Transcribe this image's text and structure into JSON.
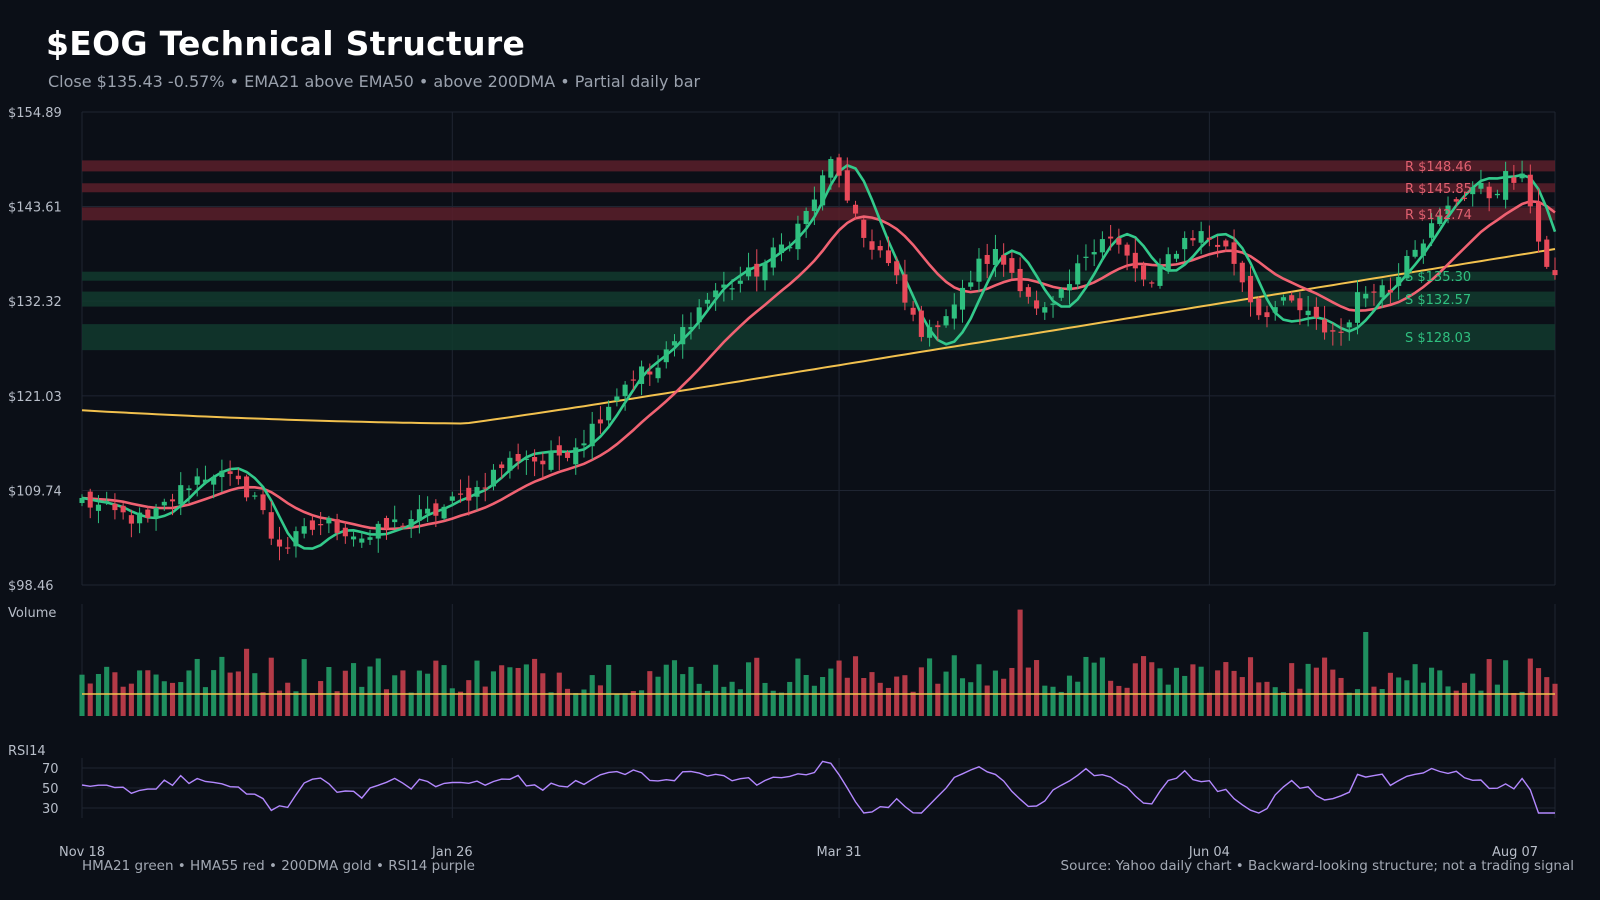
{
  "header": {
    "title": "$EOG Technical Structure",
    "subtitle": "Close $135.43  -0.57%  •  EMA21 above EMA50 • above 200DMA  •  Partial daily bar"
  },
  "footer": {
    "legend_text": "HMA21 green • HMA55 red • 200DMA gold  •  RSI14 purple",
    "source_text": "Source: Yahoo daily chart • Backward-looking structure; not a trading signal"
  },
  "colors": {
    "background": "#0b0f17",
    "up": "#2fbf7f",
    "down": "#e84a5a",
    "hma21": "#33c98b",
    "hma55": "#f06272",
    "dma200": "#f2c14e",
    "rsi": "#b388ff",
    "resistance": "#e06070",
    "support": "#2fbf7f",
    "grid": "#1f2532"
  },
  "chart_data": {
    "type": "candlestick",
    "title": "$EOG Technical Structure",
    "y_ticks": [
      "$154.89",
      "$143.61",
      "$132.32",
      "$121.03",
      "$109.74",
      "$98.46"
    ],
    "ylim": [
      98.46,
      154.89
    ],
    "x_ticks": [
      "Nov 18",
      "Jan 26",
      "Mar 31",
      "Jun 04",
      "Aug 07"
    ],
    "bars": 180,
    "grid": true,
    "levels": [
      {
        "kind": "resistance",
        "label": "R $148.46",
        "value": 148.46
      },
      {
        "kind": "resistance",
        "label": "R $145.85",
        "value": 145.85
      },
      {
        "kind": "resistance",
        "label": "R $142.74",
        "value": 142.74
      },
      {
        "kind": "support",
        "label": "S $135.30",
        "value": 135.3
      },
      {
        "kind": "support",
        "label": "S $132.57",
        "value": 132.57
      },
      {
        "kind": "support",
        "label": "S $128.03",
        "value": 128.03
      }
    ],
    "close_anchors": [
      [
        0,
        108.5
      ],
      [
        6,
        107.0
      ],
      [
        12,
        106.0
      ],
      [
        16,
        108.5
      ],
      [
        20,
        111.0
      ],
      [
        24,
        112.0
      ],
      [
        28,
        110.5
      ],
      [
        32,
        109.0
      ],
      [
        34,
        104.5
      ],
      [
        37,
        103.0
      ],
      [
        40,
        104.5
      ],
      [
        44,
        106.0
      ],
      [
        48,
        105.0
      ],
      [
        52,
        104.0
      ],
      [
        56,
        105.5
      ],
      [
        60,
        106.5
      ],
      [
        64,
        107.0
      ],
      [
        68,
        108.5
      ],
      [
        72,
        110.0
      ],
      [
        76,
        112.5
      ],
      [
        80,
        114.0
      ],
      [
        84,
        113.0
      ],
      [
        88,
        114.5
      ],
      [
        92,
        116.5
      ],
      [
        95,
        119.5
      ],
      [
        98,
        122.0
      ],
      [
        101,
        124.0
      ],
      [
        104,
        123.5
      ],
      [
        108,
        127.5
      ],
      [
        111,
        130.5
      ],
      [
        115,
        133.5
      ],
      [
        119,
        134.5
      ],
      [
        123,
        136.0
      ],
      [
        126,
        138.0
      ],
      [
        129,
        140.0
      ],
      [
        132,
        143.0
      ],
      [
        135,
        147.0
      ],
      [
        137,
        150.0
      ],
      [
        139,
        144.0
      ],
      [
        142,
        140.0
      ],
      [
        145,
        138.5
      ],
      [
        148,
        135.0
      ],
      [
        150,
        131.5
      ],
      [
        152,
        129.5
      ],
      [
        154,
        128.0
      ],
      [
        156,
        130.5
      ],
      [
        158,
        131.5
      ],
      [
        160,
        133.0
      ],
      [
        163,
        136.5
      ],
      [
        166,
        138.0
      ],
      [
        169,
        136.0
      ],
      [
        172,
        133.5
      ],
      [
        174,
        130.5
      ],
      [
        177,
        131.5
      ],
      [
        180,
        134.5
      ],
      [
        183,
        138.5
      ],
      [
        186,
        140.5
      ],
      [
        189,
        138.5
      ],
      [
        192,
        135.5
      ],
      [
        195,
        134.0
      ],
      [
        197,
        137.0
      ],
      [
        200,
        139.5
      ],
      [
        203,
        140.5
      ],
      [
        206,
        139.5
      ],
      [
        209,
        138.0
      ],
      [
        212,
        133.5
      ],
      [
        214,
        131.0
      ],
      [
        217,
        131.5
      ],
      [
        220,
        132.0
      ],
      [
        223,
        130.5
      ],
      [
        226,
        129.0
      ],
      [
        229,
        128.5
      ],
      [
        232,
        132.5
      ],
      [
        235,
        134.5
      ],
      [
        238,
        133.5
      ],
      [
        241,
        138.5
      ],
      [
        244,
        140.0
      ],
      [
        247,
        142.0
      ],
      [
        250,
        144.5
      ],
      [
        253,
        146.0
      ],
      [
        256,
        145.0
      ],
      [
        259,
        147.0
      ],
      [
        262,
        146.5
      ],
      [
        264,
        143.5
      ],
      [
        266,
        136.5
      ],
      [
        268,
        135.43
      ]
    ],
    "rsi_ylim": [
      0,
      100
    ],
    "rsi_ticks": [
      70,
      50,
      30
    ],
    "volume_panel": {
      "label": "Volume"
    },
    "rsi_panel": {
      "label": "RSI14"
    }
  }
}
